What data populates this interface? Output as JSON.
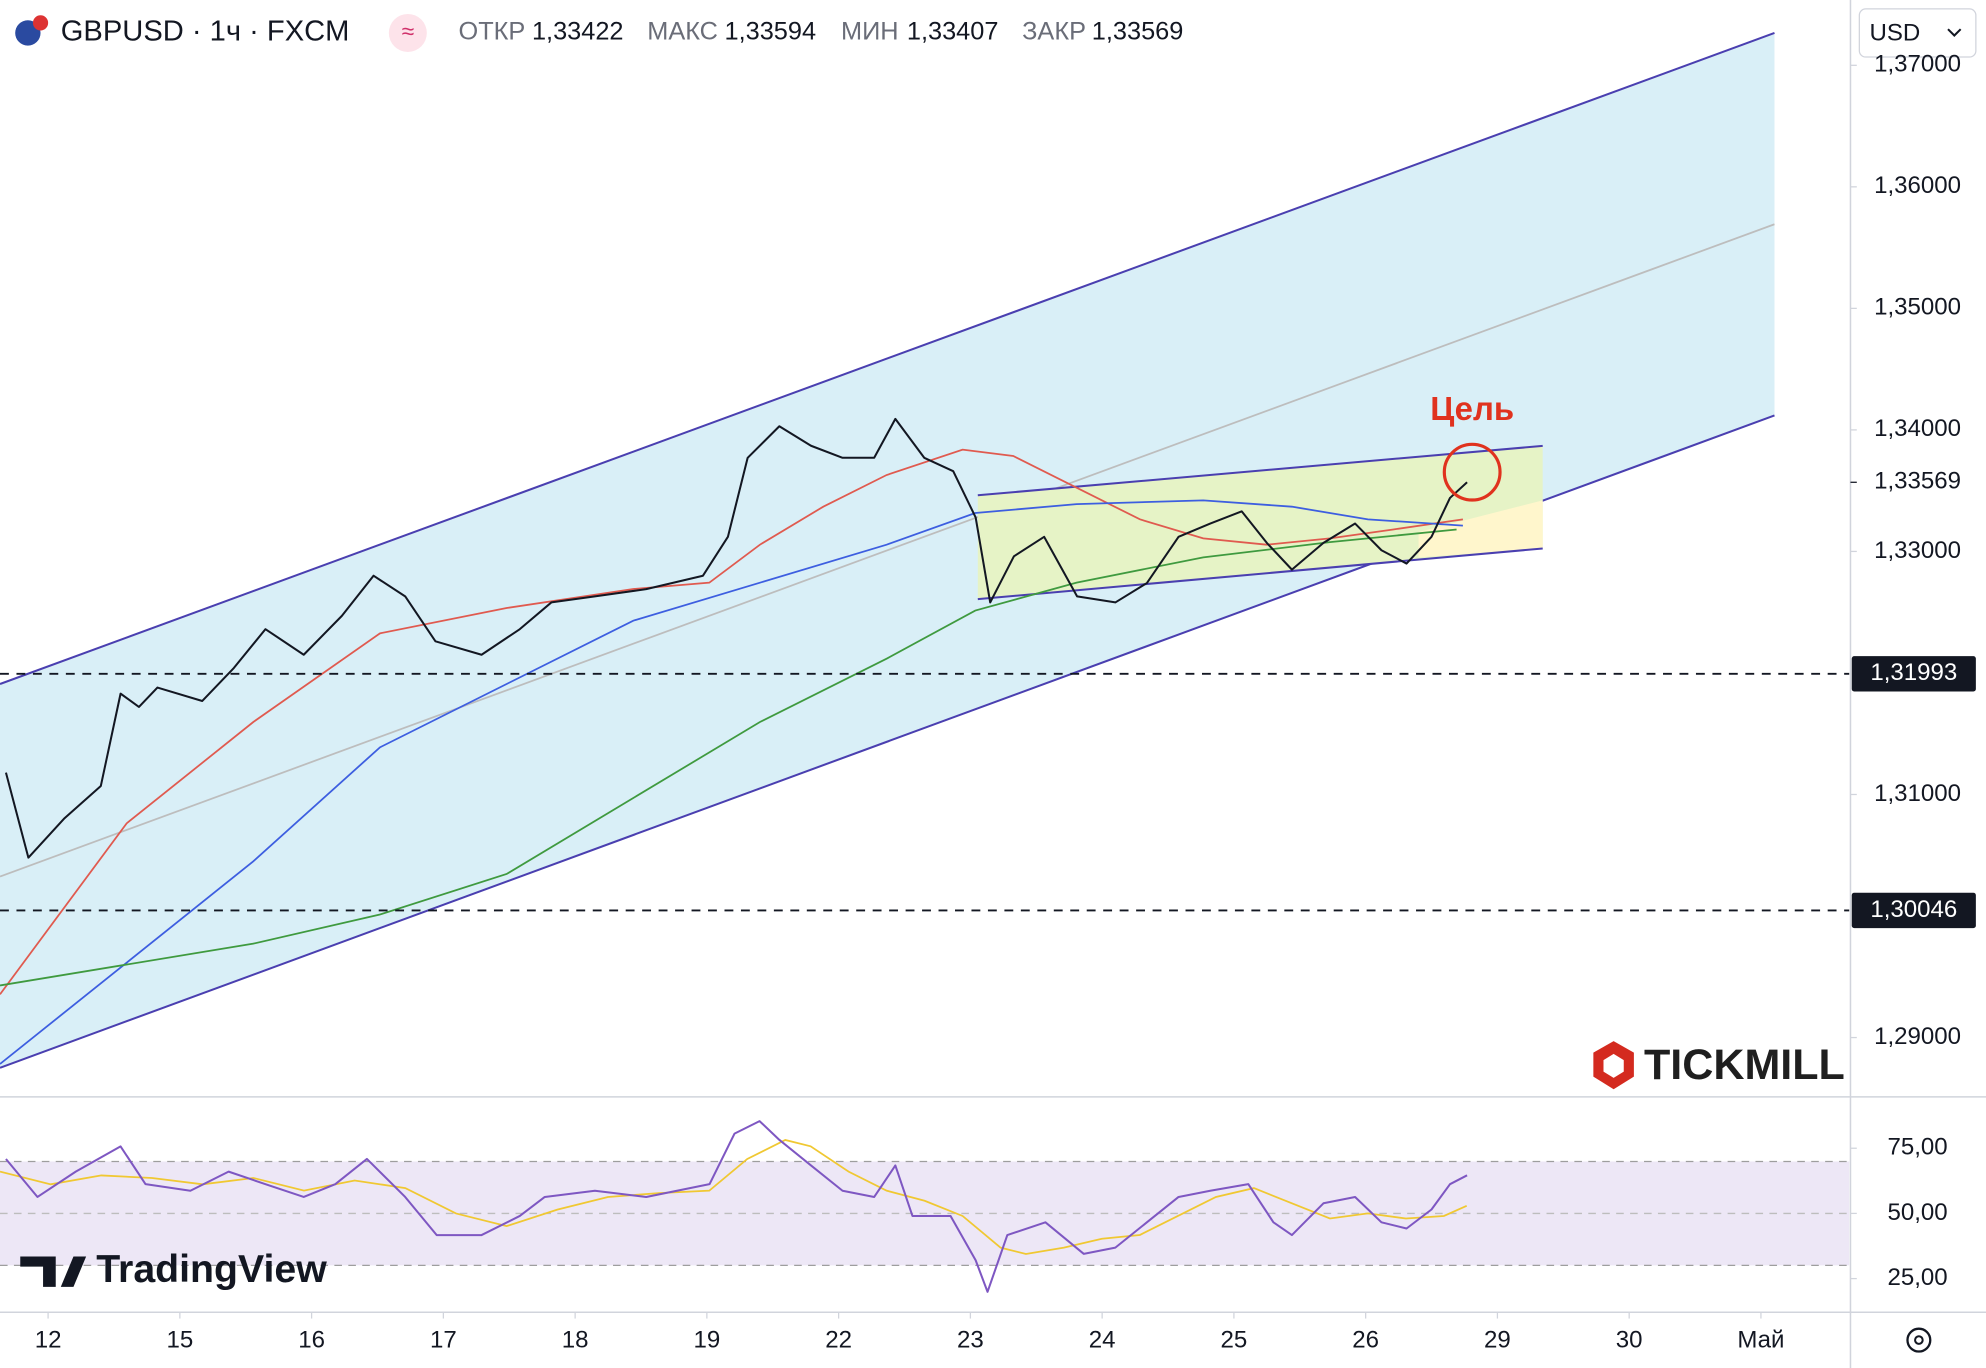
{
  "header": {
    "symbol": "GBPUSD · 1ч · FXCM",
    "indicator": "≈",
    "ohlc": [
      {
        "label": "ОТКР",
        "value": "1,33422"
      },
      {
        "label": "МАКС",
        "value": "1,33594"
      },
      {
        "label": "МИН",
        "value": "1,33407"
      },
      {
        "label": "ЗАКР",
        "value": "1,33569"
      }
    ],
    "currency": "USD"
  },
  "watermarks": {
    "broker": "TICKMILL",
    "platform": "TradingView"
  },
  "chart_data": [
    {
      "type": "line",
      "x": [
        -0.32,
        -0.15,
        0.12,
        0.4,
        0.55,
        0.69,
        0.83,
        1.17,
        1.41,
        1.65,
        1.94,
        2.23,
        2.47,
        2.71,
        2.94,
        3.29,
        3.58,
        3.82,
        4.15,
        4.54,
        4.97,
        5.16,
        5.31,
        5.55,
        5.79,
        6.03,
        6.27,
        6.43,
        6.65,
        6.87,
        7.04,
        7.15,
        7.33,
        7.56,
        7.81,
        8.1,
        8.34,
        8.58,
        8.82,
        9.06,
        9.25,
        9.44,
        9.68,
        9.92,
        10.12,
        10.31,
        10.5,
        10.64,
        10.77
      ],
      "series": [
        {
          "color": "#131722",
          "values": [
            1.3118,
            1.3048,
            1.308,
            1.3107,
            1.3183,
            1.3172,
            1.3188,
            1.3177,
            1.3204,
            1.3236,
            1.3215,
            1.3247,
            1.328,
            1.3263,
            1.3226,
            1.3215,
            1.3236,
            1.3258,
            1.3263,
            1.3269,
            1.328,
            1.3312,
            1.3377,
            1.3403,
            1.3387,
            1.3377,
            1.3377,
            1.3409,
            1.3377,
            1.3366,
            1.3328,
            1.3258,
            1.3296,
            1.3312,
            1.3263,
            1.3258,
            1.3274,
            1.3312,
            1.3323,
            1.3333,
            1.3307,
            1.3285,
            1.3307,
            1.3323,
            1.3301,
            1.329,
            1.3312,
            1.3344,
            1.33569
          ]
        }
      ],
      "xlim": [
        -0.365,
        13.67
      ],
      "xticks": [
        {
          "value": 0,
          "label": "12"
        },
        {
          "value": 1,
          "label": "15"
        },
        {
          "value": 2,
          "label": "16"
        },
        {
          "value": 3,
          "label": "17"
        },
        {
          "value": 4,
          "label": "18"
        },
        {
          "value": 5,
          "label": "19"
        },
        {
          "value": 6,
          "label": "22"
        },
        {
          "value": 7,
          "label": "23"
        },
        {
          "value": 8,
          "label": "24"
        },
        {
          "value": 9,
          "label": "25"
        },
        {
          "value": 10,
          "label": "26"
        },
        {
          "value": 11,
          "label": "29"
        },
        {
          "value": 12,
          "label": "30"
        },
        {
          "value": 13,
          "label": "Май"
        }
      ],
      "ylim": [
        1.28522,
        1.37537
      ],
      "yticks": [
        {
          "value": 1.29,
          "label": "1,29000"
        },
        {
          "value": 1.31,
          "label": "1,31000"
        },
        {
          "value": 1.33,
          "label": "1,33000"
        },
        {
          "value": 1.34,
          "label": "1,34000"
        },
        {
          "value": 1.35,
          "label": "1,35000"
        },
        {
          "value": 1.36,
          "label": "1,36000"
        },
        {
          "value": 1.37,
          "label": "1,37000"
        }
      ],
      "levels": [
        {
          "value": 1.31993,
          "label": "1,31993"
        },
        {
          "value": 1.30046,
          "label": "1,30046"
        }
      ],
      "last_price": {
        "value": 1.33569,
        "label": "1,33569"
      },
      "annotations": [
        {
          "text": "Цель",
          "color": "#e0321e"
        }
      ]
    },
    {
      "type": "line",
      "x": [
        -0.32,
        -0.08,
        0.21,
        0.55,
        0.74,
        1.08,
        1.37,
        1.65,
        1.94,
        2.18,
        2.42,
        2.71,
        2.95,
        3.29,
        3.58,
        3.77,
        4.15,
        4.54,
        5.02,
        5.21,
        5.4,
        5.55,
        5.79,
        6.03,
        6.27,
        6.43,
        6.56,
        6.85,
        7.04,
        7.13,
        7.28,
        7.57,
        7.86,
        8.1,
        8.34,
        8.58,
        8.82,
        9.11,
        9.3,
        9.44,
        9.68,
        9.92,
        10.12,
        10.31,
        10.5,
        10.64,
        10.77
      ],
      "series": [
        {
          "color": "#7e57c2",
          "values": [
            70.9,
            56.3,
            66.0,
            75.7,
            61.2,
            58.7,
            66.0,
            61.2,
            56.3,
            61.2,
            70.9,
            56.3,
            41.7,
            41.7,
            49.0,
            56.3,
            58.7,
            56.3,
            61.2,
            80.6,
            85.4,
            78.2,
            68.4,
            58.7,
            56.3,
            68.4,
            49.0,
            49.0,
            32.0,
            19.9,
            41.7,
            46.6,
            34.5,
            36.9,
            46.6,
            56.3,
            58.7,
            61.2,
            46.6,
            41.7,
            53.9,
            56.3,
            46.6,
            44.2,
            51.5,
            61.2,
            64.6
          ]
        }
      ],
      "xlim": [
        -0.365,
        13.67
      ],
      "ylim": [
        12.1,
        94.2
      ],
      "yticks": [
        {
          "value": 25,
          "label": "25,00"
        },
        {
          "value": 50,
          "label": "50,00"
        },
        {
          "value": 75,
          "label": "75,00"
        }
      ]
    }
  ]
}
